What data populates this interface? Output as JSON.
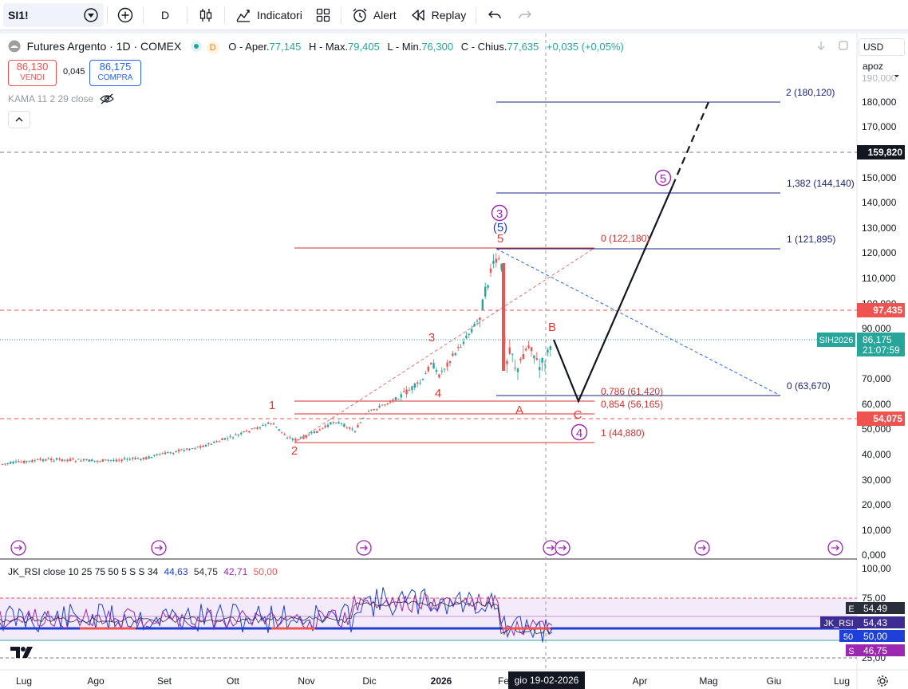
{
  "toolbar": {
    "symbol": "SI1!",
    "interval": "D",
    "indicators_label": "Indicatori",
    "alert_label": "Alert",
    "replay_label": "Replay"
  },
  "legend": {
    "title": "Futures Argento · 1D · COMEX",
    "market_status": "D",
    "open_label": "O - Aper.",
    "open_value": "77,145",
    "high_label": "H - Max.",
    "high_value": "79,405",
    "low_label": "L - Min.",
    "low_value": "76,300",
    "close_label": "C - Chius.",
    "close_value": "77,635",
    "change": "+0,035 (+0,05%)"
  },
  "trade": {
    "sell_price": "86,130",
    "sell_label": "VENDI",
    "spread": "0,045",
    "buy_price": "86,175",
    "buy_label": "COMPRA"
  },
  "kama_label": "KAMA 11 2 29 close",
  "rsi_legend": {
    "name": "JK_RSI close 10 25 75 50 5 S S 34",
    "v1": "44,63",
    "v2": "54,75",
    "v3": "42,71",
    "v4": "50,00"
  },
  "price_scale": {
    "currency": "USD",
    "mode": "apoz",
    "ticks": [
      "180,000",
      "170,000",
      "150,000",
      "140,000",
      "130,000",
      "120,000",
      "110,000",
      "100,000",
      "90,000",
      "70,000",
      "60,000",
      "50,000",
      "40,000",
      "30,000",
      "20,000",
      "10,000",
      "0,000"
    ],
    "badges": {
      "level1": "159,820",
      "level2": "97,435",
      "symbol": "SIH2026",
      "last": "86,175",
      "countdown": "21:07:59",
      "level3": "54,075"
    }
  },
  "rsi_scale": {
    "ticks": [
      "100,00",
      "75,00",
      "25,00"
    ],
    "badges": {
      "e_tag": "E",
      "e_value": "54,49",
      "rsi_tag": "JK_RSI",
      "rsi_value": "54,43",
      "mid_value": "50,00",
      "s_tag": "S",
      "s_value": "46,75"
    }
  },
  "time_axis": {
    "labels": [
      "Lug",
      "Ago",
      "Set",
      "Ott",
      "Nov",
      "Dic",
      "2026",
      "Fe",
      "Apr",
      "Mag",
      "Giu",
      "Lug"
    ],
    "crosshair_date": "gio 19-02-2026"
  },
  "fib_right": {
    "l2": "2 (180,120)",
    "l1382": "1,382 (144,140)",
    "l1": "1 (121,895)",
    "l0": "0 (63,670)"
  },
  "fib_left": {
    "l0": "0 (122,180)",
    "l786": "0,786 (61,420)",
    "l854": "0,854 (56,165)",
    "l1": "1 (44,880)"
  },
  "waves": {
    "w1": "1",
    "w2": "2",
    "w3": "3",
    "w4": "4",
    "w5": "5",
    "major3": "3",
    "inter5": "(5)",
    "a": "A",
    "b": "B",
    "c": "C",
    "major4": "4",
    "major5": "5"
  },
  "colors": {
    "up": "#26a69a",
    "down": "#ef5350",
    "fib_blue": "#1a237e",
    "fib_red": "#d32f2f",
    "wave_purple": "#9c27b0",
    "wave_red": "#e53935",
    "price_badge": "#26a69a"
  }
}
